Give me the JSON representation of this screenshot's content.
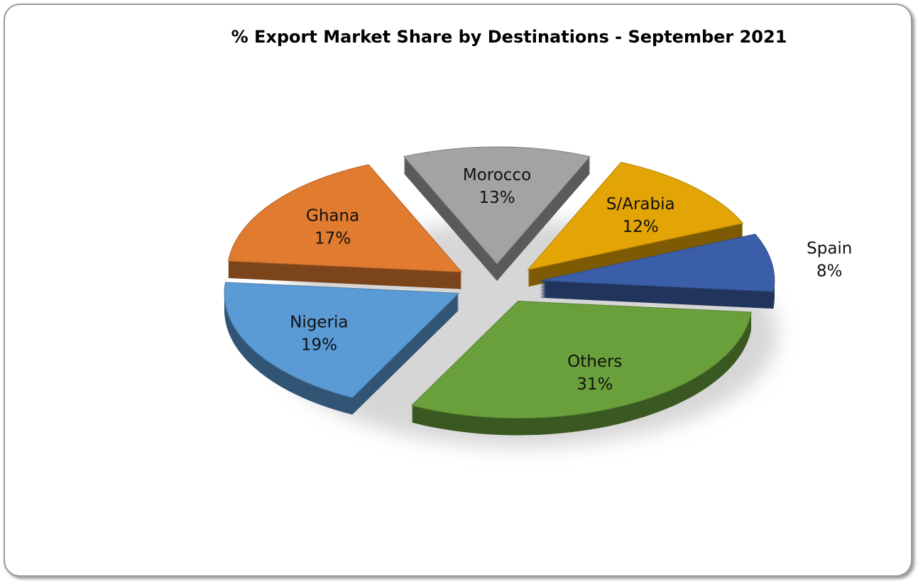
{
  "chart_data": {
    "type": "pie",
    "title": "% Export Market Share by Destinations - September 2021",
    "categories": [
      "Morocco",
      "S/Arabia",
      "Spain",
      "Others",
      "Nigeria",
      "Ghana"
    ],
    "values": [
      13,
      12,
      8,
      31,
      19,
      17
    ],
    "value_labels": [
      "13%",
      "12%",
      "8%",
      "31%",
      "19%",
      "17%"
    ],
    "colors": [
      "#a3a3a3",
      "#e3a405",
      "#3b5ea8",
      "#6aa03c",
      "#5b9bd5",
      "#e07b30"
    ]
  }
}
